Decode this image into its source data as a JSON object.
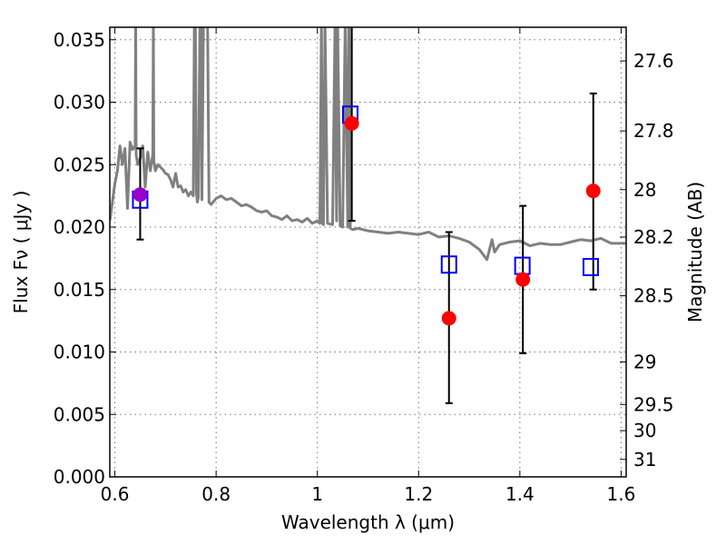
{
  "chart_data": {
    "type": "scatter",
    "xlabel": "Wavelength  λ (μm)",
    "ylabel": "Flux  Fν  ( μJy )",
    "ylabel_right": "Magnitude (AB)",
    "xlim": [
      0.59,
      1.61
    ],
    "ylim": [
      0.0,
      0.036
    ],
    "x_ticks": [
      0.6,
      0.8,
      1.0,
      1.2,
      1.4,
      1.6
    ],
    "x_tick_labels": [
      "0.6",
      "0.8",
      "1",
      "1.2",
      "1.4",
      "1.6"
    ],
    "y_ticks": [
      0.0,
      0.005,
      0.01,
      0.015,
      0.02,
      0.025,
      0.03,
      0.035
    ],
    "y_tick_labels": [
      "0.000",
      "0.005",
      "0.010",
      "0.015",
      "0.020",
      "0.025",
      "0.030",
      "0.035"
    ],
    "right_ticks": [
      {
        "label": "27.6",
        "flux": 0.0333
      },
      {
        "label": "27.8",
        "flux": 0.0277
      },
      {
        "label": "28",
        "flux": 0.023
      },
      {
        "label": "28.2",
        "flux": 0.0192
      },
      {
        "label": "28.5",
        "flux": 0.0145
      },
      {
        "label": "29",
        "flux": 0.0092
      },
      {
        "label": "29.5",
        "flux": 0.0058
      },
      {
        "label": "30",
        "flux": 0.0037
      },
      {
        "label": "31",
        "flux": 0.0014
      }
    ],
    "grid": true,
    "colors": {
      "model": "#808080",
      "observed": "#ff0000",
      "synthetic": "#0000ff",
      "errorbar": "#000000",
      "overlap": "#9900cc"
    },
    "series": [
      {
        "kind": "model-spectrum",
        "x": [
          0.59,
          0.6,
          0.605,
          0.61,
          0.615,
          0.62,
          0.625,
          0.63,
          0.635,
          0.64,
          0.641,
          0.642,
          0.645,
          0.65,
          0.655,
          0.66,
          0.665,
          0.67,
          0.675,
          0.676,
          0.677,
          0.68,
          0.685,
          0.69,
          0.695,
          0.7,
          0.705,
          0.71,
          0.715,
          0.72,
          0.725,
          0.73,
          0.735,
          0.74,
          0.745,
          0.75,
          0.755,
          0.757,
          0.759,
          0.761,
          0.763,
          0.765,
          0.768,
          0.77,
          0.772,
          0.775,
          0.777,
          0.779,
          0.781,
          0.783,
          0.786,
          0.79,
          0.8,
          0.81,
          0.82,
          0.83,
          0.84,
          0.85,
          0.86,
          0.87,
          0.88,
          0.89,
          0.9,
          0.91,
          0.92,
          0.93,
          0.94,
          0.95,
          0.96,
          0.97,
          0.98,
          0.99,
          1.0,
          1.005,
          1.008,
          1.01,
          1.012,
          1.015,
          1.02,
          1.03,
          1.035,
          1.038,
          1.04,
          1.045,
          1.05,
          1.055,
          1.06,
          1.062,
          1.063,
          1.065,
          1.07,
          1.08,
          1.1,
          1.12,
          1.14,
          1.16,
          1.18,
          1.2,
          1.22,
          1.24,
          1.26,
          1.28,
          1.3,
          1.32,
          1.335,
          1.345,
          1.35,
          1.36,
          1.38,
          1.4,
          1.42,
          1.44,
          1.46,
          1.48,
          1.5,
          1.52,
          1.54,
          1.56,
          1.58,
          1.6,
          1.61
        ],
        "y": [
          0.0205,
          0.0235,
          0.0245,
          0.0265,
          0.025,
          0.0263,
          0.0215,
          0.0268,
          0.0262,
          0.0265,
          0.0365,
          0.0258,
          0.025,
          0.0255,
          0.0265,
          0.0232,
          0.026,
          0.0245,
          0.0258,
          0.0365,
          0.0253,
          0.0245,
          0.025,
          0.0248,
          0.0246,
          0.0243,
          0.0242,
          0.0238,
          0.0232,
          0.0243,
          0.0232,
          0.0233,
          0.0228,
          0.023,
          0.0225,
          0.0228,
          0.0225,
          0.0365,
          0.0365,
          0.0228,
          0.022,
          0.0224,
          0.0365,
          0.0365,
          0.0222,
          0.0365,
          0.0365,
          0.0365,
          0.0365,
          0.0365,
          0.022,
          0.0218,
          0.0223,
          0.0225,
          0.0222,
          0.0223,
          0.022,
          0.0217,
          0.0218,
          0.0216,
          0.0213,
          0.0212,
          0.0213,
          0.0209,
          0.0208,
          0.0206,
          0.0209,
          0.0205,
          0.0206,
          0.0204,
          0.0207,
          0.0203,
          0.0205,
          0.0203,
          0.0365,
          0.0203,
          0.0202,
          0.0365,
          0.0203,
          0.0202,
          0.0365,
          0.0205,
          0.0365,
          0.0201,
          0.02,
          0.0365,
          0.02,
          0.0365,
          0.0365,
          0.0199,
          0.0198,
          0.0199,
          0.0197,
          0.0196,
          0.0195,
          0.0196,
          0.0195,
          0.0194,
          0.0196,
          0.0192,
          0.0193,
          0.0191,
          0.0188,
          0.0182,
          0.0174,
          0.019,
          0.018,
          0.0186,
          0.0188,
          0.0189,
          0.0185,
          0.0187,
          0.0186,
          0.0186,
          0.0188,
          0.019,
          0.0189,
          0.0191,
          0.0187,
          0.0187,
          0.0187
        ]
      },
      {
        "kind": "synthetic-photometry",
        "marker": "open-square",
        "x": [
          0.65,
          1.065,
          1.26,
          1.405,
          1.54
        ],
        "y": [
          0.0222,
          0.029,
          0.017,
          0.0169,
          0.0168
        ]
      },
      {
        "kind": "observed-photometry",
        "marker": "filled-circle",
        "x": [
          0.65,
          1.068,
          1.26,
          1.406,
          1.545
        ],
        "y": [
          0.0226,
          0.0283,
          0.0127,
          0.0158,
          0.0229
        ],
        "yerr_low": [
          0.019,
          0.0205,
          0.0059,
          0.0099,
          0.015
        ],
        "yerr_high": [
          0.0263,
          0.0365,
          0.0196,
          0.0217,
          0.0307
        ]
      }
    ]
  }
}
